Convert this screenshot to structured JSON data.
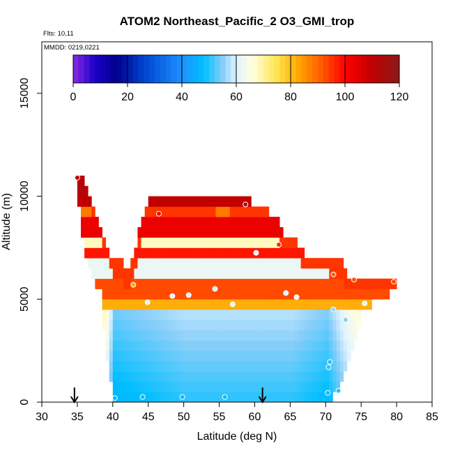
{
  "chart_data": {
    "type": "heatmap",
    "title": "ATOM2 Northeast_Pacific_2 O3_GMI_trop",
    "subtitle_lines": [
      "Flts: 10,11",
      "MMDD: 0219,0221"
    ],
    "xlabel": "Latitude (deg N)",
    "ylabel": "Altitude (m)",
    "xlim": [
      30,
      85
    ],
    "ylim": [
      0,
      17500
    ],
    "x_ticks": [
      30,
      35,
      40,
      45,
      50,
      55,
      60,
      65,
      70,
      75,
      80,
      85
    ],
    "y_ticks": [
      0,
      5000,
      10000,
      15000
    ],
    "colorbar": {
      "min": 0,
      "max": 120,
      "ticks": [
        0,
        20,
        40,
        60,
        80,
        100,
        120
      ],
      "stops": [
        {
          "v": 0,
          "color": "#8a2be2"
        },
        {
          "v": 8,
          "color": "#1a00c8"
        },
        {
          "v": 16,
          "color": "#00008b"
        },
        {
          "v": 26,
          "color": "#0044d0"
        },
        {
          "v": 40,
          "color": "#1e90ff"
        },
        {
          "v": 48,
          "color": "#00bfff"
        },
        {
          "v": 55,
          "color": "#87cefa"
        },
        {
          "v": 60,
          "color": "#e0f3ff"
        },
        {
          "v": 66,
          "color": "#ffffe0"
        },
        {
          "v": 75,
          "color": "#ffe44d"
        },
        {
          "v": 83,
          "color": "#ffa500"
        },
        {
          "v": 92,
          "color": "#ff5500"
        },
        {
          "v": 100,
          "color": "#ff0000"
        },
        {
          "v": 110,
          "color": "#c00000"
        },
        {
          "v": 120,
          "color": "#8b1a1a"
        }
      ]
    },
    "cell_size": {
      "lat": 0.5,
      "alt": 500
    },
    "column_profiles": {
      "x": [
        35,
        36,
        37,
        38,
        39,
        40,
        45,
        50,
        55,
        60,
        65,
        70,
        71,
        72,
        73,
        74,
        75,
        80
      ],
      "base_m": [
        9500,
        7000,
        6000,
        5500,
        2000,
        0,
        0,
        0,
        0,
        0,
        0,
        0,
        500,
        1000,
        2000,
        3000,
        4500,
        5500
      ],
      "low_value": [
        78,
        70,
        66,
        62,
        58,
        46,
        48,
        50,
        50,
        50,
        50,
        47,
        50,
        53,
        56,
        58,
        60,
        62
      ]
    },
    "top_profile": {
      "x": [
        35,
        36,
        37,
        38,
        39,
        39.5,
        42,
        43,
        44,
        45,
        50,
        55,
        56,
        60,
        63,
        64,
        66,
        67,
        70,
        71,
        72,
        73,
        74,
        75,
        78,
        79.5,
        80
      ],
      "top_m": [
        11000,
        10500,
        9500,
        8500,
        7500,
        7000,
        6300,
        7200,
        9000,
        9800,
        9700,
        10000,
        10000,
        9400,
        8700,
        8000,
        7500,
        7000,
        7000,
        6700,
        6700,
        6000,
        6000,
        6000,
        6000,
        6000,
        5500
      ]
    },
    "bands": [
      {
        "bottom_m": 4500,
        "top_m": 5100,
        "value": 82
      },
      {
        "bottom_m": 5100,
        "top_m": 6000,
        "value": 93
      },
      {
        "bottom_m": 6000,
        "top_m": 6800,
        "value": 62
      },
      {
        "bottom_m": 6800,
        "top_m": 7600,
        "value": 98
      },
      {
        "bottom_m": 7600,
        "top_m": 8200,
        "value": 68
      },
      {
        "bottom_m": 8200,
        "top_m": 8800,
        "value": 103
      },
      {
        "bottom_m": 8800,
        "top_m": 9300,
        "value": 88
      },
      {
        "bottom_m": 9300,
        "top_m": 10000,
        "value": 110
      },
      {
        "bottom_m": 10000,
        "top_m": 11000,
        "value": 112
      }
    ],
    "observations": [
      {
        "lat": 35.0,
        "alt": 10900,
        "value": 110
      },
      {
        "lat": 40.3,
        "alt": 200,
        "value": 48
      },
      {
        "lat": 44.2,
        "alt": 250,
        "value": 48
      },
      {
        "lat": 49.8,
        "alt": 250,
        "value": 48
      },
      {
        "lat": 55.8,
        "alt": 250,
        "value": 48
      },
      {
        "lat": 70.3,
        "alt": 450,
        "value": 48
      },
      {
        "lat": 71.8,
        "alt": 550,
        "value": 50
      },
      {
        "lat": 70.4,
        "alt": 1700,
        "value": 50
      },
      {
        "lat": 70.6,
        "alt": 1950,
        "value": 50
      },
      {
        "lat": 72.8,
        "alt": 4000,
        "value": 55
      },
      {
        "lat": 71.1,
        "alt": 4500,
        "value": 56
      },
      {
        "lat": 75.5,
        "alt": 4800,
        "value": 60
      },
      {
        "lat": 44.9,
        "alt": 4850,
        "value": 60
      },
      {
        "lat": 56.9,
        "alt": 4750,
        "value": 60
      },
      {
        "lat": 48.4,
        "alt": 5150,
        "value": 60
      },
      {
        "lat": 50.7,
        "alt": 5200,
        "value": 60
      },
      {
        "lat": 64.4,
        "alt": 5300,
        "value": 60
      },
      {
        "lat": 65.9,
        "alt": 5100,
        "value": 62
      },
      {
        "lat": 54.4,
        "alt": 5500,
        "value": 60
      },
      {
        "lat": 42.9,
        "alt": 5700,
        "value": 82
      },
      {
        "lat": 74.0,
        "alt": 5950,
        "value": 92
      },
      {
        "lat": 79.6,
        "alt": 5850,
        "value": 93
      },
      {
        "lat": 71.1,
        "alt": 6200,
        "value": 90
      },
      {
        "lat": 60.2,
        "alt": 7250,
        "value": 62
      },
      {
        "lat": 63.4,
        "alt": 7650,
        "value": 96
      },
      {
        "lat": 46.5,
        "alt": 9150,
        "value": 100
      },
      {
        "lat": 58.7,
        "alt": 9600,
        "value": 110
      }
    ],
    "arrows": [
      {
        "lat": 34.6,
        "label": ""
      },
      {
        "lat": 61.1,
        "label": ""
      }
    ]
  }
}
